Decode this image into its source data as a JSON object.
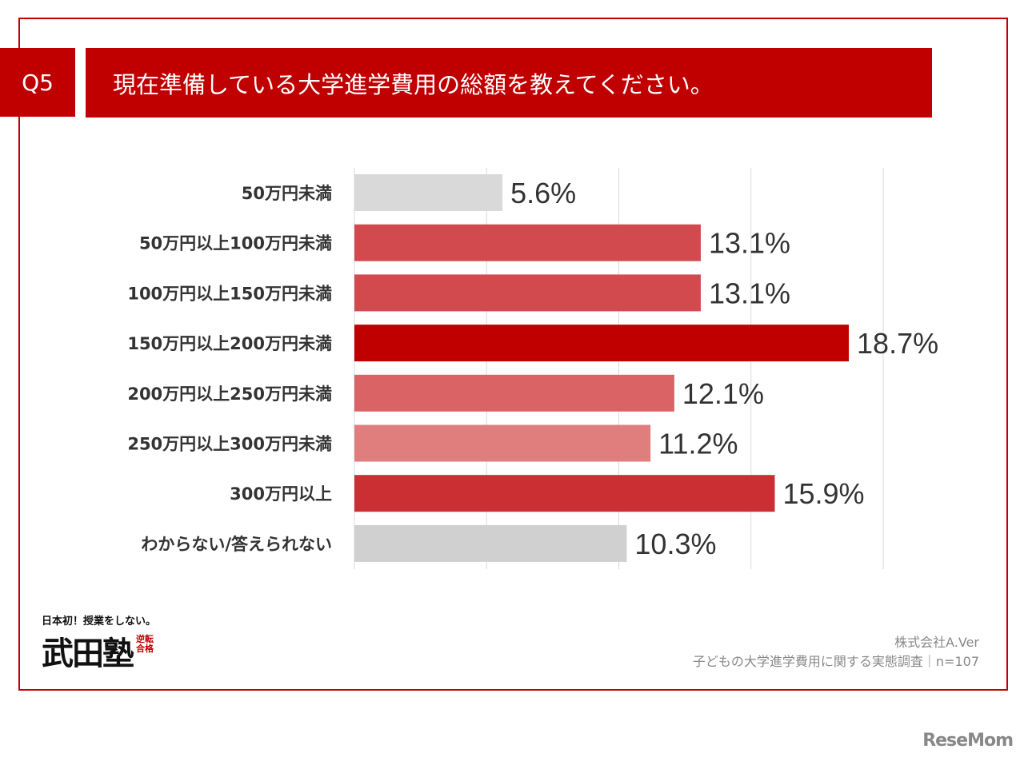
{
  "header": {
    "q_label": "Q5",
    "title": "現在準備している大学進学費用の総額を教えてください。"
  },
  "chart_data": {
    "type": "bar",
    "orientation": "horizontal",
    "categories": [
      "50万円未満",
      "50万円以上100万円未満",
      "100万円以上150万円未満",
      "150万円以上200万円未満",
      "200万円以上250万円未満",
      "250万円以上300万円未満",
      "300万円以上",
      "わからない/答えられない"
    ],
    "values": [
      5.6,
      13.1,
      13.1,
      18.7,
      12.1,
      11.2,
      15.9,
      10.3
    ],
    "labels": [
      "5.6%",
      "13.1%",
      "13.1%",
      "18.7%",
      "12.1%",
      "11.2%",
      "15.9%",
      "10.3%"
    ],
    "colors": [
      "#d9d9d9",
      "#d34a4e",
      "#d34a4e",
      "#c00000",
      "#d96365",
      "#e07e7e",
      "#cc2f33",
      "#d0d0d0"
    ],
    "xlim": [
      0,
      20
    ],
    "grid": true,
    "unit": "%"
  },
  "logo": {
    "tagline": "日本初！授業をしない。",
    "name": "武田塾",
    "seal": "逆転合格"
  },
  "source": {
    "company": "株式会社A.Ver",
    "survey": "子どもの大学進学費用に関する実態調査｜n=107"
  },
  "watermark": "ReseMom"
}
